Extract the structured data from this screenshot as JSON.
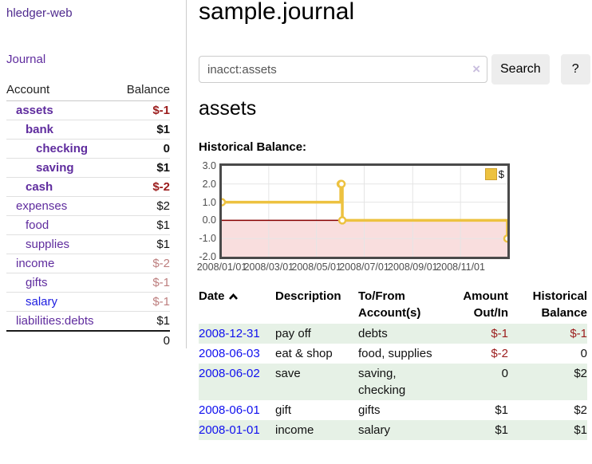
{
  "brand": "hledger-web",
  "nav": {
    "journal": "Journal"
  },
  "sidebar": {
    "col_account": "Account",
    "col_balance": "Balance",
    "accounts": [
      {
        "name": "assets",
        "balance": "$-1",
        "depth": 1,
        "bold": true,
        "neg": "strong"
      },
      {
        "name": "bank",
        "balance": "$1",
        "depth": 2,
        "bold": true
      },
      {
        "name": "checking",
        "balance": "0",
        "depth": 3,
        "bold": true
      },
      {
        "name": "saving",
        "balance": "$1",
        "depth": 3,
        "bold": true
      },
      {
        "name": "cash",
        "balance": "$-2",
        "depth": 2,
        "bold": true,
        "neg": "strong"
      },
      {
        "name": "expenses",
        "balance": "$2",
        "depth": 1
      },
      {
        "name": "food",
        "balance": "$1",
        "depth": 2
      },
      {
        "name": "supplies",
        "balance": "$1",
        "depth": 2
      },
      {
        "name": "income",
        "balance": "$-2",
        "depth": 1,
        "neg": "muted"
      },
      {
        "name": "gifts",
        "balance": "$-1",
        "depth": 2,
        "neg": "muted"
      },
      {
        "name": "salary",
        "balance": "$-1",
        "depth": 2,
        "neg": "muted",
        "blue": true
      },
      {
        "name": "liabilities:debts",
        "balance": "$1",
        "depth": 1
      }
    ],
    "total": "0"
  },
  "main": {
    "title": "sample.journal",
    "search": {
      "value": "inacct:assets",
      "clear": "×",
      "search_button": "Search",
      "help_button": "?"
    },
    "account_title": "assets",
    "chart_title": "Historical Balance:"
  },
  "chart_data": {
    "type": "line",
    "step": true,
    "title": "Historical Balance",
    "series": [
      {
        "name": "$",
        "color": "#edc240",
        "points": [
          [
            "2008-01-01",
            1
          ],
          [
            "2008-06-01",
            2
          ],
          [
            "2008-06-02",
            2
          ],
          [
            "2008-06-03",
            0
          ],
          [
            "2008-12-31",
            -1
          ]
        ]
      }
    ],
    "xlim": [
      "2008-01-01",
      "2008-12-31"
    ],
    "ylim": [
      -2,
      3
    ],
    "x_ticks": [
      "2008/01/01",
      "2008/03/01",
      "2008/05/01",
      "2008/07/01",
      "2008/09/01",
      "2008/11/01"
    ],
    "y_ticks": [
      "3.0",
      "2.0",
      "1.0",
      "0.0",
      "-1.0",
      "-2.0"
    ],
    "grid": true,
    "legend_position": "top-right",
    "negative_region_color": "#f9dede",
    "zero_line_color": "#880000",
    "grid_color": "#e5e5e5"
  },
  "register": {
    "sort": "ascending",
    "headers": [
      {
        "id": "date",
        "lines": [
          "Date"
        ]
      },
      {
        "id": "description",
        "lines": [
          "Description"
        ]
      },
      {
        "id": "accounts",
        "lines": [
          "To/From",
          "Account(s)"
        ]
      },
      {
        "id": "amount",
        "lines": [
          "Amount",
          "Out/In"
        ],
        "align": "right"
      },
      {
        "id": "balance",
        "lines": [
          "Historical",
          "Balance"
        ],
        "align": "right"
      }
    ],
    "rows": [
      {
        "date": "2008-12-31",
        "description": "pay off",
        "accounts": [
          "debts"
        ],
        "amount": "$-1",
        "amount_negative": true,
        "balance": "$-1",
        "balance_negative": true
      },
      {
        "date": "2008-06-03",
        "description": "eat & shop",
        "accounts": [
          "food, supplies"
        ],
        "amount": "$-2",
        "amount_negative": true,
        "balance": "0"
      },
      {
        "date": "2008-06-02",
        "description": "save",
        "accounts": [
          "saving,",
          "checking"
        ],
        "amount": "0",
        "balance": "$2"
      },
      {
        "date": "2008-06-01",
        "description": "gift",
        "accounts": [
          "gifts"
        ],
        "amount": "$1",
        "balance": "$2"
      },
      {
        "date": "2008-01-01",
        "description": "income",
        "accounts": [
          "salary"
        ],
        "amount": "$1",
        "balance": "$1"
      }
    ]
  }
}
